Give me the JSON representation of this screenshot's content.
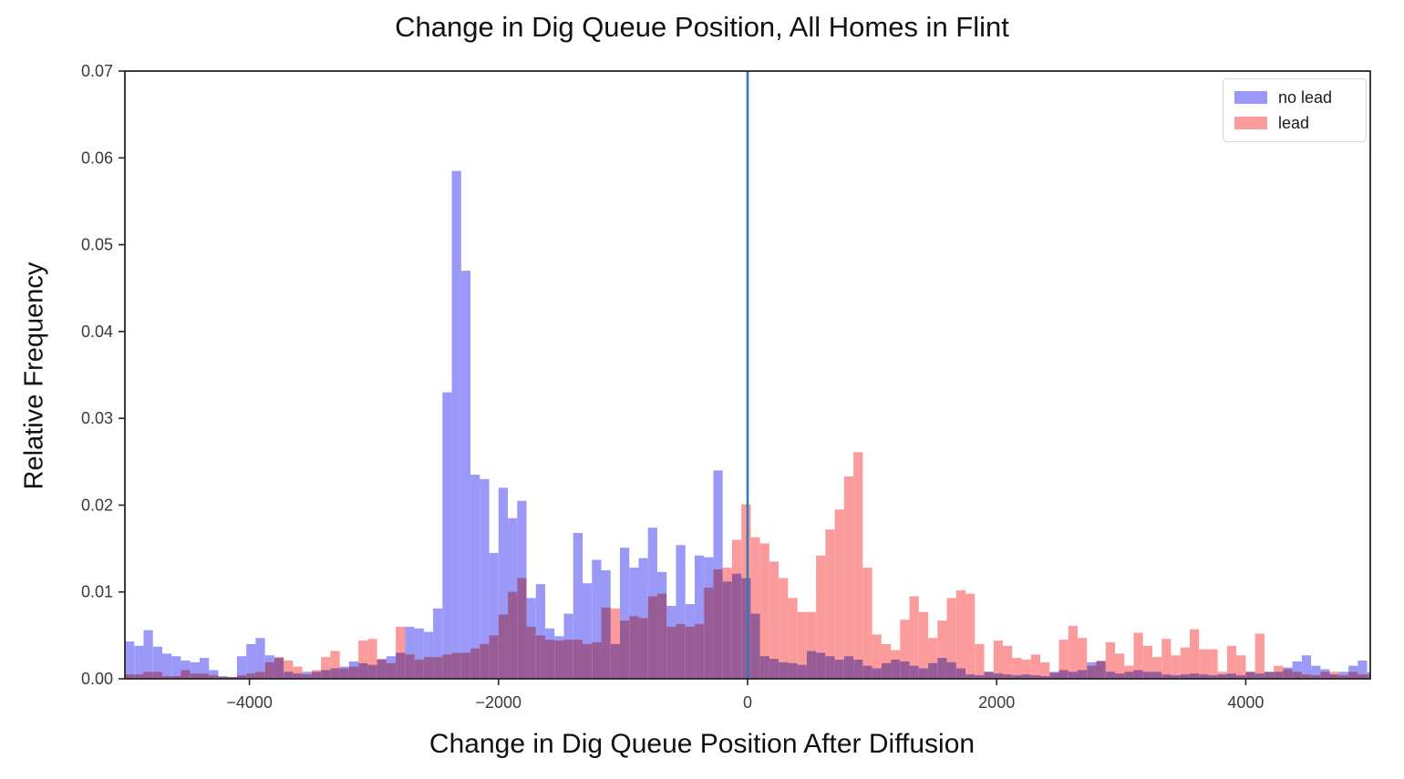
{
  "figure": {
    "title": "Change in Dig Queue Position, All Homes in Flint",
    "xlabel": "Change in Dig Queue Position After Diffusion",
    "ylabel": "Relative Frequency"
  },
  "legend": {
    "items": [
      {
        "label": "no lead",
        "color": "#9b99f8"
      },
      {
        "label": "lead",
        "color": "#fb9b9b"
      }
    ]
  },
  "chart_data": {
    "type": "bar",
    "subtype": "overlaid-histogram",
    "title": "Change in Dig Queue Position, All Homes in Flint",
    "xlabel": "Change in Dig Queue Position After Diffusion",
    "ylabel": "Relative Frequency",
    "xlim": [
      -5000,
      5000
    ],
    "ylim": [
      0,
      0.07
    ],
    "x_ticks": [
      -4000,
      -2000,
      0,
      2000,
      4000
    ],
    "x_tick_labels": [
      "−4000",
      "−2000",
      "0",
      "2000",
      "4000"
    ],
    "y_ticks": [
      0,
      0.01,
      0.02,
      0.03,
      0.04,
      0.05,
      0.06,
      0.07
    ],
    "y_tick_labels": [
      "0.00",
      "0.01",
      "0.02",
      "0.03",
      "0.04",
      "0.05",
      "0.06",
      "0.07"
    ],
    "grid": false,
    "legend_position": "upper right",
    "vline_x": 0,
    "bin_start": -5000,
    "bin_width": 75,
    "colors": {
      "no_lead": "#9b99f8",
      "lead": "#fb9b9b",
      "vline": "#3a78b2",
      "axis": "#262626",
      "tick_label": "#3a3a3a"
    },
    "series": [
      {
        "name": "no lead",
        "values": [
          0.0043,
          0.0038,
          0.0056,
          0.0037,
          0.0029,
          0.0026,
          0.0021,
          0.0019,
          0.0024,
          0.001,
          0.0003,
          0.0002,
          0.0026,
          0.004,
          0.0047,
          0.0027,
          0.0024,
          0.0008,
          0.0006,
          0.0008,
          0.0008,
          0.001,
          0.0012,
          0.0014,
          0.002,
          0.0018,
          0.0016,
          0.0022,
          0.0026,
          0.003,
          0.006,
          0.0058,
          0.0054,
          0.0081,
          0.033,
          0.0585,
          0.047,
          0.0235,
          0.023,
          0.0145,
          0.022,
          0.0185,
          0.0205,
          0.0093,
          0.0109,
          0.0058,
          0.0049,
          0.0075,
          0.0168,
          0.011,
          0.0137,
          0.0125,
          0.004,
          0.0151,
          0.0128,
          0.0139,
          0.0174,
          0.0123,
          0.0084,
          0.0154,
          0.0086,
          0.0142,
          0.014,
          0.024,
          0.0112,
          0.0121,
          0.0116,
          0.0075,
          0.0026,
          0.0023,
          0.0019,
          0.0018,
          0.0016,
          0.0032,
          0.003,
          0.0026,
          0.0022,
          0.0026,
          0.0022,
          0.0015,
          0.0012,
          0.0018,
          0.0022,
          0.002,
          0.0015,
          0.0012,
          0.0018,
          0.0024,
          0.0019,
          0.0012,
          0.0005,
          0.0004,
          0.0008,
          0.0006,
          0.0005,
          0.0004,
          0.0005,
          0.0004,
          0.0003,
          0.0008,
          0.001,
          0.0008,
          0.001,
          0.0019,
          0.002,
          0.0008,
          0.0006,
          0.0008,
          0.001,
          0.0008,
          0.0008,
          0.0005,
          0.0004,
          0.0005,
          0.0006,
          0.0005,
          0.0004,
          0.0005,
          0.0006,
          0.0004,
          0.0008,
          0.0006,
          0.0008,
          0.0008,
          0.0013,
          0.002,
          0.0027,
          0.0015,
          0.0011,
          0.0005,
          0.0008,
          0.0015,
          0.0021,
          0.0008
        ]
      },
      {
        "name": "lead",
        "values": [
          0.0005,
          0.0005,
          0.0008,
          0.0008,
          0.0003,
          0.0003,
          0.001,
          0.0006,
          0.0006,
          0.0004,
          0.0002,
          0.0002,
          0.0004,
          0.0006,
          0.0008,
          0.0019,
          0.0025,
          0.0021,
          0.0014,
          0.0005,
          0.001,
          0.0025,
          0.0032,
          0.0012,
          0.0014,
          0.0044,
          0.0046,
          0.0023,
          0.0018,
          0.006,
          0.0028,
          0.0022,
          0.0025,
          0.0025,
          0.0028,
          0.003,
          0.003,
          0.0035,
          0.004,
          0.005,
          0.0074,
          0.01,
          0.0116,
          0.006,
          0.005,
          0.0045,
          0.0044,
          0.0045,
          0.0045,
          0.004,
          0.0042,
          0.0082,
          0.0081,
          0.0067,
          0.0072,
          0.007,
          0.0095,
          0.0098,
          0.006,
          0.0063,
          0.006,
          0.0063,
          0.0105,
          0.0126,
          0.0128,
          0.016,
          0.0201,
          0.0163,
          0.0156,
          0.0135,
          0.0116,
          0.0093,
          0.0077,
          0.0077,
          0.0142,
          0.0172,
          0.0195,
          0.0233,
          0.0261,
          0.0128,
          0.0051,
          0.004,
          0.0033,
          0.0068,
          0.0095,
          0.0077,
          0.0047,
          0.0067,
          0.0093,
          0.0102,
          0.0098,
          0.004,
          0.0008,
          0.0044,
          0.0038,
          0.0024,
          0.0022,
          0.0028,
          0.0019,
          0.0007,
          0.0045,
          0.0061,
          0.0047,
          0.0015,
          0.0021,
          0.0042,
          0.0029,
          0.0015,
          0.0053,
          0.0038,
          0.0025,
          0.0046,
          0.0027,
          0.0036,
          0.0057,
          0.0034,
          0.0034,
          0.0008,
          0.0038,
          0.0027,
          0.0008,
          0.0052,
          0.0008,
          0.0015,
          0.0011,
          0.0008,
          0.0005,
          0.0004,
          0.0008,
          0.0008,
          0.0004,
          0.0008,
          0.0005,
          0.0005
        ]
      }
    ]
  }
}
